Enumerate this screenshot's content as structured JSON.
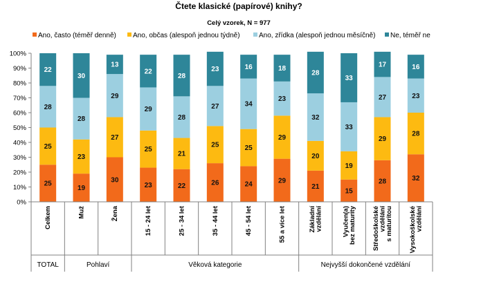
{
  "chart_data": {
    "type": "bar",
    "stacked": true,
    "percent": true,
    "title": "Čtete klasické (papírové) knihy?",
    "subtitle": "Celý vzorek, N = 977",
    "categories": [
      "Celkem",
      "Muž",
      "Žena",
      "15 - 24 let",
      "25 - 34 let",
      "35 - 44 let",
      "45 - 54 let",
      "55 a více let",
      "Základní vzdělání",
      "Vyučen(a) bez maturity",
      "Středoškolské vzdělání s maturitou",
      "Vysokoškolské vzdělání"
    ],
    "category_lines": [
      [
        "Celkem"
      ],
      [
        "Muž"
      ],
      [
        "Žena"
      ],
      [
        "15 - 24 let"
      ],
      [
        "25 - 34 let"
      ],
      [
        "35 - 44 let"
      ],
      [
        "45 - 54 let"
      ],
      [
        "55 a více let"
      ],
      [
        "Základní",
        "vzdělání"
      ],
      [
        "Vyučen(a)",
        "bez maturity"
      ],
      [
        "Středoškolské",
        "vzdělání",
        "s maturitou"
      ],
      [
        "Vysokoškolské",
        "vzdělání"
      ]
    ],
    "series": [
      {
        "name": "Ano, často (téměř denně)",
        "color": "#F26A1B",
        "values": [
          25,
          19,
          30,
          23,
          22,
          26,
          24,
          29,
          21,
          15,
          28,
          32
        ]
      },
      {
        "name": "Ano, občas (alespoň jednou týdně)",
        "color": "#FDBA11",
        "values": [
          25,
          23,
          27,
          25,
          21,
          25,
          25,
          29,
          20,
          19,
          29,
          28
        ]
      },
      {
        "name": "Ano, zřídka (alespoň jednou měsíčně)",
        "color": "#9CCFE0",
        "values": [
          28,
          28,
          29,
          29,
          28,
          27,
          34,
          23,
          32,
          33,
          27,
          23
        ]
      },
      {
        "name": "Ne, téměř ne",
        "color": "#2E8699",
        "values": [
          22,
          30,
          13,
          22,
          28,
          23,
          16,
          18,
          28,
          33,
          17,
          16
        ]
      }
    ],
    "groups": [
      {
        "label": "TOTAL",
        "start": 0,
        "end": 0
      },
      {
        "label": "Pohlaví",
        "start": 1,
        "end": 2
      },
      {
        "label": "Věková kategorie",
        "start": 3,
        "end": 7
      },
      {
        "label": "Nejvyšší dokončené vzdělání",
        "start": 8,
        "end": 11
      }
    ],
    "yticks": [
      "0%",
      "10%",
      "20%",
      "30%",
      "40%",
      "50%",
      "60%",
      "70%",
      "80%",
      "90%",
      "100%"
    ],
    "ylim": [
      0,
      100
    ],
    "legend_position": "top",
    "grid": false
  }
}
